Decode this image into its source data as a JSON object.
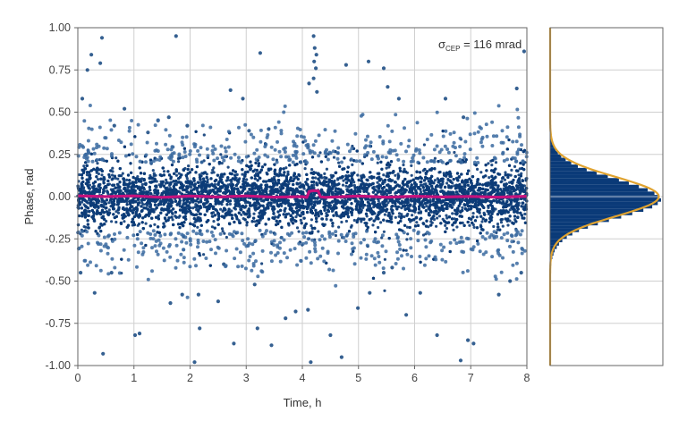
{
  "chart_data": [
    {
      "type": "scatter",
      "xlabel": "Time, h",
      "ylabel": "Phase, rad",
      "xlim": [
        0,
        8
      ],
      "ylim": [
        -1.0,
        1.0
      ],
      "x_ticks": [
        "0",
        "1",
        "2",
        "3",
        "4",
        "5",
        "6",
        "7",
        "8"
      ],
      "y_ticks": [
        "-1.00",
        "-0.75",
        "-0.50",
        "-0.25",
        "0.00",
        "0.25",
        "0.50",
        "0.75",
        "1.00"
      ],
      "grid": true,
      "annotation": {
        "symbol": "σ",
        "subscript": "CEP",
        "text": " = 116 mrad"
      },
      "series": [
        {
          "type": "scatter",
          "color": "#1f4f85",
          "points_note": "dense cloud of ~116 mrad spread around 0",
          "outliers": [
            [
              0.08,
              0.58
            ],
            [
              0.17,
              0.75
            ],
            [
              0.24,
              0.84
            ],
            [
              0.43,
              0.94
            ],
            [
              0.4,
              0.79
            ],
            [
              0.65,
              0.42
            ],
            [
              0.83,
              0.52
            ],
            [
              1.43,
              0.45
            ],
            [
              1.62,
              0.47
            ],
            [
              1.75,
              0.95
            ],
            [
              1.95,
              0.42
            ],
            [
              2.72,
              0.63
            ],
            [
              2.94,
              0.58
            ],
            [
              3.05,
              0.39
            ],
            [
              3.25,
              0.85
            ],
            [
              4.12,
              0.67
            ],
            [
              4.2,
              0.95
            ],
            [
              4.22,
              0.88
            ],
            [
              4.25,
              0.84
            ],
            [
              4.21,
              0.8
            ],
            [
              4.24,
              0.76
            ],
            [
              4.2,
              0.7
            ],
            [
              4.26,
              0.62
            ],
            [
              4.78,
              0.78
            ],
            [
              5.18,
              0.8
            ],
            [
              5.45,
              0.76
            ],
            [
              5.52,
              0.65
            ],
            [
              5.72,
              0.58
            ],
            [
              6.55,
              0.58
            ],
            [
              6.87,
              0.47
            ],
            [
              7.82,
              0.64
            ],
            [
              7.95,
              0.86
            ],
            [
              1.25,
              0.38
            ],
            [
              3.4,
              0.4
            ],
            [
              0.05,
              -0.45
            ],
            [
              0.3,
              -0.57
            ],
            [
              0.6,
              -0.45
            ],
            [
              0.45,
              -0.93
            ],
            [
              1.02,
              -0.82
            ],
            [
              1.1,
              -0.81
            ],
            [
              1.65,
              -0.63
            ],
            [
              1.86,
              -0.58
            ],
            [
              2.08,
              -0.98
            ],
            [
              2.17,
              -0.78
            ],
            [
              2.15,
              -0.58
            ],
            [
              2.5,
              -0.62
            ],
            [
              2.78,
              -0.87
            ],
            [
              3.15,
              -0.52
            ],
            [
              3.2,
              -0.78
            ],
            [
              3.45,
              -0.88
            ],
            [
              3.7,
              -0.72
            ],
            [
              3.88,
              -0.68
            ],
            [
              4.1,
              -0.67
            ],
            [
              4.15,
              -0.98
            ],
            [
              4.5,
              -0.82
            ],
            [
              4.7,
              -0.95
            ],
            [
              4.99,
              -0.66
            ],
            [
              5.2,
              -0.57
            ],
            [
              5.45,
              -0.45
            ],
            [
              5.85,
              -0.7
            ],
            [
              6.1,
              -0.57
            ],
            [
              6.4,
              -0.82
            ],
            [
              6.82,
              -0.97
            ],
            [
              6.95,
              -0.85
            ],
            [
              7.05,
              -0.87
            ],
            [
              7.5,
              -0.58
            ],
            [
              7.7,
              -0.5
            ],
            [
              7.9,
              -0.45
            ],
            [
              2.6,
              -0.4
            ],
            [
              5.6,
              -0.42
            ]
          ]
        },
        {
          "type": "line",
          "color": "#c4127d",
          "description": "running mean near 0 with a bump near 4.2 h",
          "x": [
            0,
            0.5,
            1,
            1.5,
            2,
            2.5,
            3,
            3.5,
            4,
            4.08,
            4.12,
            4.18,
            4.28,
            4.32,
            4.4,
            5,
            5.5,
            6,
            6.5,
            7,
            7.5,
            8
          ],
          "y": [
            0.005,
            0.0,
            0.004,
            -0.004,
            0.003,
            -0.002,
            0.004,
            -0.003,
            0.0,
            -0.005,
            0.03,
            0.035,
            0.035,
            0.0,
            -0.004,
            0.003,
            -0.003,
            0.002,
            -0.002,
            0.001,
            -0.003,
            0.002
          ]
        }
      ]
    },
    {
      "type": "bar",
      "orientation": "horizontal",
      "ylim": [
        -1.0,
        1.0
      ],
      "grid": true,
      "bar_color": "#0a3a78",
      "fit_color": "#e0a330",
      "fit": {
        "type": "gaussian",
        "mean": 0.0,
        "sigma": 0.116
      },
      "bins": {
        "centers": [
          -0.4,
          -0.38,
          -0.36,
          -0.34,
          -0.32,
          -0.3,
          -0.28,
          -0.26,
          -0.24,
          -0.22,
          -0.2,
          -0.18,
          -0.16,
          -0.14,
          -0.12,
          -0.1,
          -0.08,
          -0.06,
          -0.04,
          -0.02,
          0.0,
          0.02,
          0.04,
          0.06,
          0.08,
          0.1,
          0.12,
          0.14,
          0.16,
          0.18,
          0.2,
          0.22,
          0.24,
          0.26,
          0.28,
          0.3,
          0.32,
          0.34,
          0.36,
          0.38,
          0.4
        ],
        "counts": [
          0.01,
          0.01,
          0.02,
          0.03,
          0.04,
          0.06,
          0.08,
          0.11,
          0.15,
          0.2,
          0.26,
          0.34,
          0.43,
          0.53,
          0.64,
          0.74,
          0.84,
          0.92,
          0.97,
          1.0,
          0.98,
          0.94,
          0.88,
          0.8,
          0.71,
          0.62,
          0.52,
          0.42,
          0.33,
          0.25,
          0.19,
          0.14,
          0.1,
          0.07,
          0.05,
          0.035,
          0.025,
          0.015,
          0.01,
          0.005,
          0.003
        ]
      }
    }
  ]
}
